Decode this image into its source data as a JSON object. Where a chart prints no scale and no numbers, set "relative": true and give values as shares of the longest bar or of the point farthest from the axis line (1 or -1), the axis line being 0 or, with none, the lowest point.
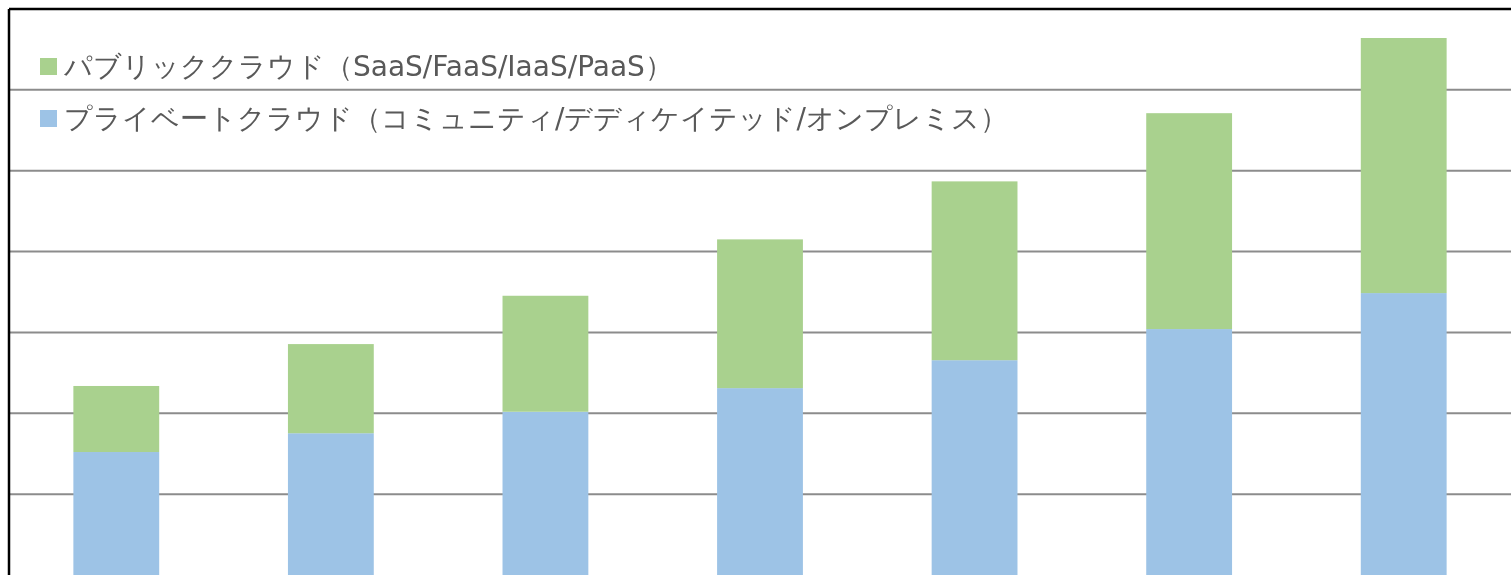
{
  "chart_data": {
    "type": "bar",
    "stacked": true,
    "relative": true,
    "grid": "y",
    "legend": "top left",
    "categories": [
      null,
      null,
      null,
      null,
      null,
      null,
      null
    ],
    "series": [
      {
        "name": "プライベートクラウド（コミュニティ/デディケイテッド/オンプレミス）",
        "color": "#9dc3e6",
        "values": [
          0.229,
          0.264,
          0.304,
          0.348,
          0.4,
          0.458,
          0.525
        ]
      },
      {
        "name": "パブリッククラウド（SaaS/FaaS/IaaS/PaaS）",
        "color": "#a9d18e",
        "values": [
          0.123,
          0.166,
          0.216,
          0.277,
          0.333,
          0.402,
          0.475
        ]
      }
    ]
  }
}
